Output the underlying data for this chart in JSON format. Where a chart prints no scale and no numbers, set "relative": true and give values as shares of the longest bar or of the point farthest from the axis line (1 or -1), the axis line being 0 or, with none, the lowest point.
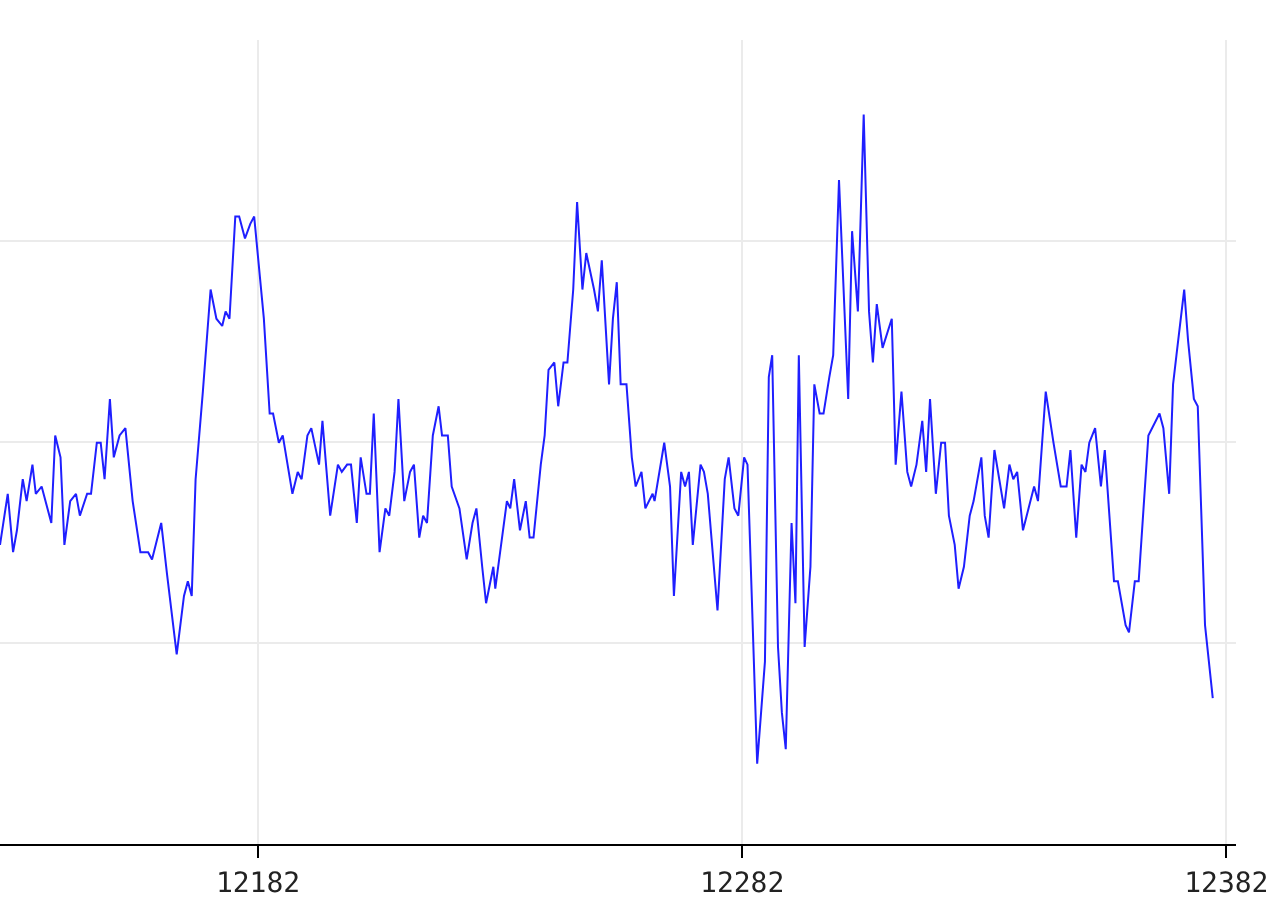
{
  "chart_data": {
    "type": "line",
    "relative": true,
    "grid": true,
    "marker": "none",
    "line_style": "solid",
    "xlim": [
      12128.7,
      12384
    ],
    "xticks": [
      12182,
      12282,
      12382
    ],
    "series": [
      {
        "color": "#1f1fff",
        "x": [
          12128.7,
          12130.3,
          12131.4,
          12132.2,
          12133.4,
          12134.2,
          12135.4,
          12136.1,
          12137.3,
          12139.3,
          12140.1,
          12141.2,
          12142.0,
          12143.2,
          12144.4,
          12145.2,
          12146.7,
          12147.5,
          12148.7,
          12149.5,
          12150.3,
          12151.4,
          12152.2,
          12153.4,
          12154.6,
          12156.1,
          12157.7,
          12159.3,
          12160.1,
          12162.0,
          12163.2,
          12165.2,
          12166.7,
          12167.5,
          12168.3,
          12169.1,
          12170.6,
          12172.2,
          12173.4,
          12174.6,
          12175.3,
          12176.1,
          12177.3,
          12178.1,
          12179.3,
          12180.4,
          12181.2,
          12183.2,
          12184.4,
          12185.1,
          12186.3,
          12187.1,
          12189.1,
          12190.2,
          12191.0,
          12192.2,
          12193.0,
          12194.6,
          12195.3,
          12196.9,
          12198.5,
          12199.3,
          12200.4,
          12201.2,
          12202.4,
          12203.2,
          12204.4,
          12205.1,
          12205.9,
          12207.1,
          12208.3,
          12209.1,
          12210.2,
          12211.0,
          12212.2,
          12213.4,
          12214.2,
          12215.3,
          12216.1,
          12216.9,
          12218.1,
          12219.3,
          12220.0,
          12221.2,
          12222.0,
          12223.6,
          12225.1,
          12226.3,
          12227.1,
          12228.3,
          12229.1,
          12230.6,
          12231.0,
          12233.4,
          12234.1,
          12234.9,
          12236.1,
          12237.3,
          12238.1,
          12238.9,
          12240.4,
          12241.2,
          12242.0,
          12243.2,
          12244.0,
          12245.1,
          12245.9,
          12247.1,
          12247.9,
          12249.0,
          12249.8,
          12251.4,
          12252.2,
          12253.0,
          12254.5,
          12255.3,
          12256.1,
          12256.9,
          12258.1,
          12259.2,
          12260.0,
          12261.2,
          12262.0,
          12263.5,
          12263.9,
          12265.9,
          12267.1,
          12267.9,
          12269.4,
          12270.2,
          12271.0,
          12271.8,
          12273.4,
          12274.1,
          12274.9,
          12276.9,
          12278.4,
          12279.2,
          12280.4,
          12281.2,
          12282.4,
          12283.1,
          12285.1,
          12286.7,
          12287.5,
          12288.2,
          12289.4,
          12290.2,
          12291.0,
          12292.2,
          12293.0,
          12293.7,
          12294.9,
          12296.1,
          12296.9,
          12298.0,
          12298.8,
          12300.0,
          12300.8,
          12302.0,
          12303.9,
          12304.7,
          12305.9,
          12307.1,
          12308.2,
          12309.0,
          12309.8,
          12311.0,
          12312.9,
          12313.7,
          12314.9,
          12316.1,
          12316.9,
          12318.0,
          12319.2,
          12320.0,
          12320.8,
          12322.0,
          12323.1,
          12323.9,
          12324.7,
          12325.9,
          12326.7,
          12327.8,
          12329.0,
          12329.8,
          12331.4,
          12332.1,
          12332.9,
          12334.1,
          12336.1,
          12337.2,
          12338.0,
          12338.8,
          12340.0,
          12342.3,
          12343.1,
          12344.7,
          12346.3,
          12347.8,
          12349.0,
          12349.8,
          12351.0,
          12352.1,
          12352.9,
          12353.7,
          12354.9,
          12356.1,
          12356.9,
          12358.8,
          12359.6,
          12361.2,
          12361.9,
          12363.1,
          12363.9,
          12365.9,
          12368.2,
          12369.0,
          12370.2,
          12371.0,
          12371.7,
          12373.3,
          12374.1,
          12375.3,
          12376.1,
          12377.6,
          12379.2
        ],
        "values": [
          0.41,
          0.48,
          0.4,
          0.43,
          0.5,
          0.47,
          0.52,
          0.48,
          0.49,
          0.44,
          0.56,
          0.53,
          0.41,
          0.47,
          0.48,
          0.45,
          0.48,
          0.48,
          0.55,
          0.55,
          0.5,
          0.61,
          0.53,
          0.56,
          0.57,
          0.47,
          0.4,
          0.4,
          0.39,
          0.44,
          0.37,
          0.26,
          0.34,
          0.36,
          0.34,
          0.5,
          0.62,
          0.76,
          0.72,
          0.71,
          0.73,
          0.72,
          0.86,
          0.86,
          0.83,
          0.85,
          0.86,
          0.72,
          0.59,
          0.59,
          0.55,
          0.56,
          0.48,
          0.51,
          0.5,
          0.56,
          0.57,
          0.52,
          0.58,
          0.45,
          0.52,
          0.51,
          0.52,
          0.52,
          0.44,
          0.53,
          0.48,
          0.48,
          0.59,
          0.4,
          0.46,
          0.45,
          0.51,
          0.61,
          0.47,
          0.51,
          0.52,
          0.42,
          0.45,
          0.44,
          0.56,
          0.6,
          0.56,
          0.56,
          0.49,
          0.46,
          0.39,
          0.44,
          0.46,
          0.38,
          0.33,
          0.38,
          0.35,
          0.47,
          0.46,
          0.5,
          0.43,
          0.47,
          0.42,
          0.42,
          0.52,
          0.56,
          0.65,
          0.66,
          0.6,
          0.66,
          0.66,
          0.76,
          0.88,
          0.76,
          0.81,
          0.76,
          0.73,
          0.8,
          0.63,
          0.72,
          0.77,
          0.63,
          0.63,
          0.53,
          0.49,
          0.51,
          0.46,
          0.48,
          0.47,
          0.55,
          0.49,
          0.34,
          0.51,
          0.49,
          0.51,
          0.41,
          0.52,
          0.51,
          0.48,
          0.32,
          0.5,
          0.53,
          0.46,
          0.45,
          0.53,
          0.52,
          0.11,
          0.25,
          0.64,
          0.67,
          0.27,
          0.18,
          0.13,
          0.44,
          0.33,
          0.67,
          0.27,
          0.38,
          0.63,
          0.59,
          0.59,
          0.64,
          0.67,
          0.91,
          0.61,
          0.84,
          0.73,
          1.0,
          0.73,
          0.66,
          0.74,
          0.68,
          0.72,
          0.52,
          0.62,
          0.51,
          0.49,
          0.52,
          0.58,
          0.51,
          0.61,
          0.48,
          0.55,
          0.55,
          0.45,
          0.41,
          0.35,
          0.38,
          0.45,
          0.47,
          0.53,
          0.45,
          0.42,
          0.54,
          0.46,
          0.52,
          0.5,
          0.51,
          0.43,
          0.49,
          0.47,
          0.62,
          0.55,
          0.49,
          0.49,
          0.54,
          0.42,
          0.52,
          0.51,
          0.55,
          0.57,
          0.49,
          0.54,
          0.36,
          0.36,
          0.3,
          0.29,
          0.36,
          0.36,
          0.56,
          0.59,
          0.57,
          0.48,
          0.63,
          0.67,
          0.76,
          0.69,
          0.61,
          0.6,
          0.3,
          0.2
        ]
      }
    ]
  }
}
